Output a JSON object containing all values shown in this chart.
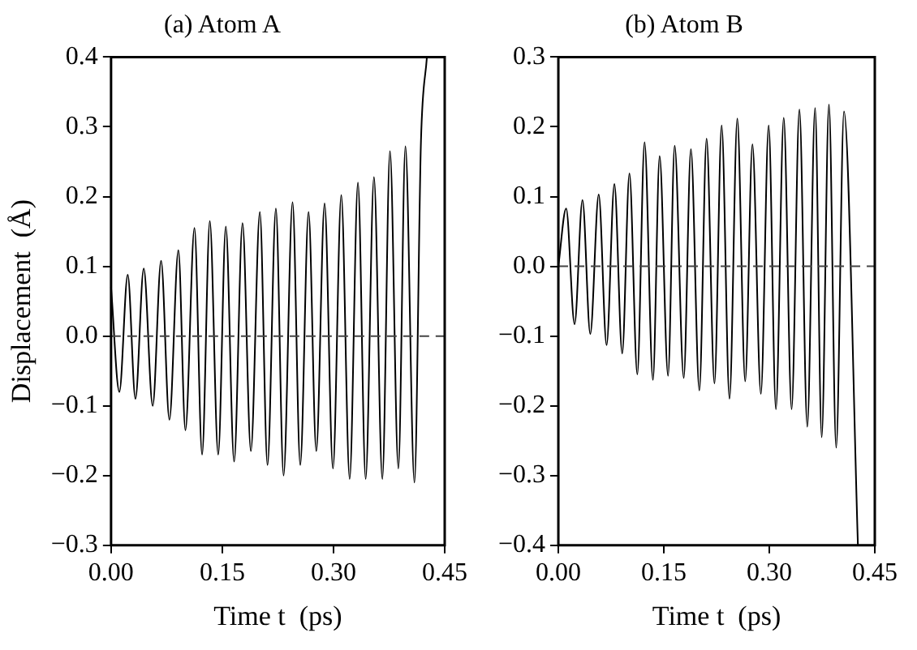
{
  "chart_data": [
    {
      "type": "line",
      "title": "(a) Atom A",
      "xlabel": "Time t  (ps)",
      "ylabel": "Displacement  (Å)",
      "grid": false,
      "legend": false,
      "marker": "none",
      "line_style": "solid",
      "xlim": [
        0,
        0.45
      ],
      "ylim": [
        -0.3,
        0.4
      ],
      "xticks": [
        {
          "value": 0,
          "label": "0.00"
        },
        {
          "value": 0.15,
          "label": "0.15"
        },
        {
          "value": 0.3,
          "label": "0.30"
        },
        {
          "value": 0.45,
          "label": "0.45"
        }
      ],
      "yticks": [
        {
          "value": -0.3,
          "label": "−0.3"
        },
        {
          "value": -0.2,
          "label": "−0.2"
        },
        {
          "value": -0.1,
          "label": "−0.1"
        },
        {
          "value": 0,
          "label": "0.0"
        },
        {
          "value": 0.1,
          "label": "0.1"
        },
        {
          "value": 0.2,
          "label": "0.2"
        },
        {
          "value": 0.3,
          "label": "0.3"
        },
        {
          "value": 0.4,
          "label": "0.4"
        }
      ],
      "ref_lines": [
        {
          "axis": "y",
          "value": 0,
          "color": "#444444",
          "line_style": "dashed"
        }
      ],
      "series": [
        {
          "color": "#000000",
          "x": [
            0,
            0.0112,
            0.0225,
            0.0329,
            0.0441,
            0.0562,
            0.0675,
            0.0787,
            0.0908,
            0.1003,
            0.1125,
            0.1228,
            0.1332,
            0.1445,
            0.1548,
            0.166,
            0.1773,
            0.1886,
            0.2007,
            0.211,
            0.2223,
            0.2327,
            0.2448,
            0.2552,
            0.2664,
            0.2768,
            0.288,
            0.2993,
            0.3105,
            0.3218,
            0.333,
            0.3434,
            0.3546,
            0.3659,
            0.3762,
            0.3875,
            0.397,
            0.4092,
            0.418,
            0.426
          ],
          "values": [
            0.07,
            -0.08,
            0.088,
            -0.09,
            0.097,
            -0.1,
            0.108,
            -0.12,
            0.123,
            -0.135,
            0.155,
            -0.17,
            0.165,
            -0.17,
            0.157,
            -0.18,
            0.162,
            -0.165,
            0.178,
            -0.185,
            0.183,
            -0.2,
            0.192,
            -0.185,
            0.178,
            -0.165,
            0.19,
            -0.19,
            0.202,
            -0.205,
            0.22,
            -0.205,
            0.228,
            -0.205,
            0.265,
            -0.19,
            0.272,
            -0.21,
            0.28,
            0.4
          ]
        }
      ]
    },
    {
      "type": "line",
      "title": "(b) Atom B",
      "xlabel": "Time t  (ps)",
      "grid": false,
      "legend": false,
      "marker": "none",
      "line_style": "solid",
      "xlim": [
        0,
        0.45
      ],
      "ylim": [
        -0.4,
        0.3
      ],
      "xticks": [
        {
          "value": 0,
          "label": "0.00"
        },
        {
          "value": 0.15,
          "label": "0.15"
        },
        {
          "value": 0.3,
          "label": "0.30"
        },
        {
          "value": 0.45,
          "label": "0.45"
        }
      ],
      "yticks": [
        {
          "value": -0.4,
          "label": "−0.4"
        },
        {
          "value": -0.3,
          "label": "−0.3"
        },
        {
          "value": -0.2,
          "label": "−0.2"
        },
        {
          "value": -0.1,
          "label": "−0.1"
        },
        {
          "value": 0,
          "label": "0.0"
        },
        {
          "value": 0.1,
          "label": "0.1"
        },
        {
          "value": 0.2,
          "label": "0.2"
        },
        {
          "value": 0.3,
          "label": "0.3"
        }
      ],
      "ref_lines": [
        {
          "axis": "y",
          "value": 0,
          "color": "#444444",
          "line_style": "dashed"
        }
      ],
      "series": [
        {
          "color": "#000000",
          "x": [
            0,
            0.0111,
            0.0231,
            0.0343,
            0.0454,
            0.0574,
            0.0686,
            0.0797,
            0.0908,
            0.1011,
            0.1123,
            0.1226,
            0.1345,
            0.144,
            0.156,
            0.1654,
            0.1783,
            0.1885,
            0.2005,
            0.2108,
            0.222,
            0.2322,
            0.2434,
            0.2545,
            0.2657,
            0.276,
            0.288,
            0.2991,
            0.3094,
            0.3205,
            0.3317,
            0.3428,
            0.354,
            0.3651,
            0.3745,
            0.3848,
            0.3951,
            0.4062,
            0.426
          ],
          "values": [
            0,
            0.083,
            -0.083,
            0.095,
            -0.097,
            0.103,
            -0.113,
            0.118,
            -0.125,
            0.133,
            -0.155,
            0.178,
            -0.163,
            0.158,
            -0.157,
            0.173,
            -0.16,
            0.168,
            -0.178,
            0.183,
            -0.168,
            0.202,
            -0.19,
            0.212,
            -0.165,
            0.175,
            -0.183,
            0.202,
            -0.205,
            0.213,
            -0.205,
            0.225,
            -0.23,
            0.227,
            -0.245,
            0.232,
            -0.26,
            0.222,
            -0.4
          ]
        }
      ]
    }
  ]
}
